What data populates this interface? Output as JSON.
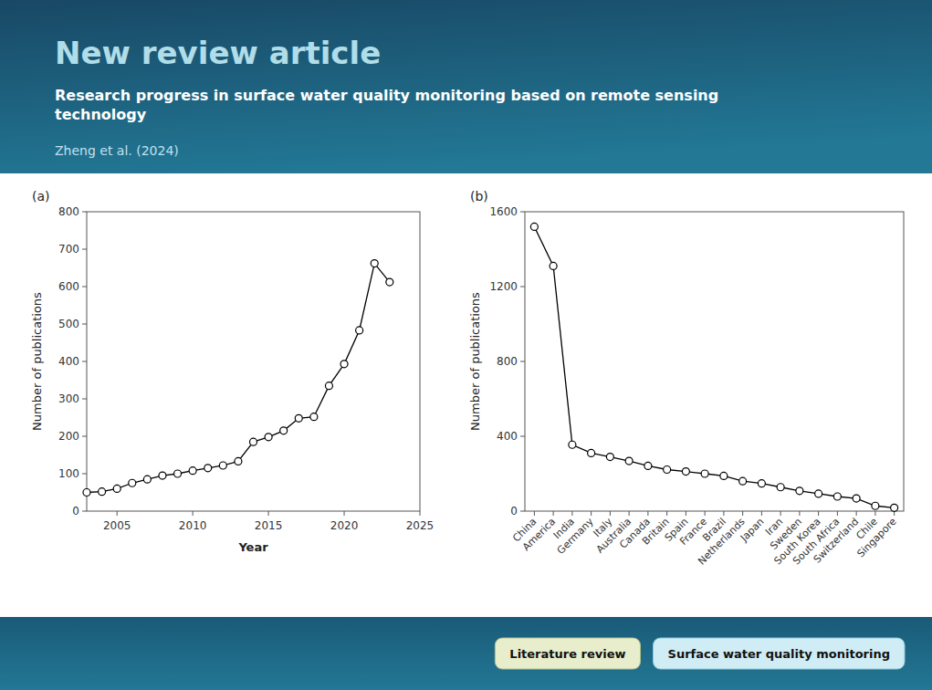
{
  "title": "New review article",
  "subtitle": "Research progress in surface water quality monitoring based on remote sensing\ntechnology",
  "annotations": [
    "Zheng et al. (2024)",
    "Literature review",
    "Surface water quality monitoring"
  ],
  "chart_data": [
    {
      "type": "line",
      "title": "(a)",
      "x_label": "Year",
      "y_label": "Number of publications",
      "x": [
        2003,
        2004,
        2005,
        2006,
        2007,
        2008,
        2009,
        2010,
        2011,
        2012,
        2013,
        2014,
        2015,
        2016,
        2017,
        2018,
        2019,
        2020,
        2021,
        2022,
        2023
      ],
      "values": [
        50,
        52,
        60,
        75,
        85,
        95,
        100,
        108,
        115,
        122,
        133,
        185,
        198,
        215,
        248,
        252,
        335,
        393,
        483,
        662,
        612
      ],
      "color": "#000000",
      "marker": "circle",
      "xlim": [
        2003,
        2025
      ],
      "xticks": [
        2005,
        2010,
        2015,
        2020,
        2025
      ],
      "ylim": [
        0,
        800
      ],
      "yticks": [
        0,
        100,
        200,
        300,
        400,
        500,
        600,
        700,
        800
      ],
      "grid": false
    },
    {
      "type": "line",
      "title": "(b)",
      "y_label": "Number of publications",
      "categories": [
        "China",
        "America",
        "India",
        "Germany",
        "Italy",
        "Australia",
        "Canada",
        "Britain",
        "Spain",
        "France",
        "Brazil",
        "Netherlands",
        "Japan",
        "Iran",
        "Sweden",
        "South Korea",
        "South Africa",
        "Switzerland",
        "Chile",
        "Singapore"
      ],
      "values": [
        1520,
        1310,
        355,
        310,
        290,
        268,
        242,
        222,
        212,
        200,
        188,
        160,
        148,
        128,
        108,
        93,
        78,
        68,
        28,
        18
      ],
      "color": "#000000",
      "marker": "circle",
      "ylim": [
        0,
        1600
      ],
      "yticks": [
        0,
        400,
        800,
        1200,
        1600
      ],
      "grid": false
    }
  ]
}
